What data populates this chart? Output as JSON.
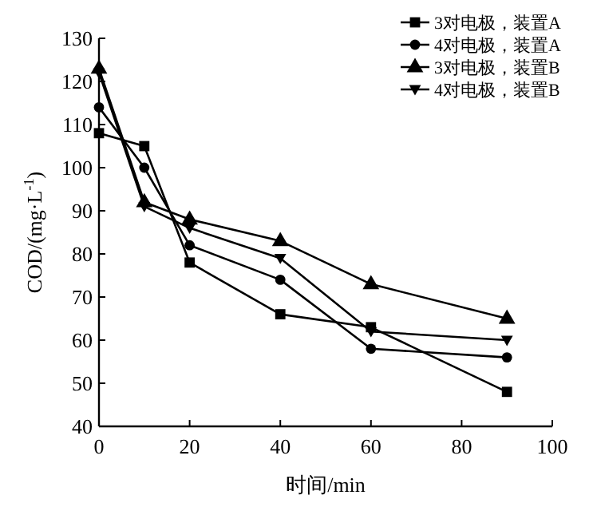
{
  "chart_data": {
    "type": "line",
    "xlabel": "时间/min",
    "ylabel": "COD/(mg·L$^{-1}$)",
    "xlim": [
      0,
      100
    ],
    "xticks": [
      0,
      20,
      40,
      60,
      80,
      100
    ],
    "ylim": [
      40,
      130
    ],
    "yticks": [
      40,
      50,
      60,
      70,
      80,
      90,
      100,
      110,
      120,
      130
    ],
    "x": [
      0,
      10,
      20,
      40,
      60,
      90
    ],
    "legend": "top right",
    "grid": false,
    "line_style": "solid",
    "series": [
      {
        "name": "3对电极，装置A",
        "color": "#000000",
        "marker": "square",
        "values": [
          108,
          105,
          78,
          66,
          63,
          48
        ]
      },
      {
        "name": "4对电极，装置A",
        "color": "#000000",
        "marker": "circle",
        "values": [
          114,
          100,
          82,
          74,
          58,
          56
        ]
      },
      {
        "name": "3对电极，装置B",
        "color": "#000000",
        "marker": "triangle",
        "values": [
          123,
          92,
          88,
          83,
          73,
          65
        ]
      },
      {
        "name": "4对电极，装置B",
        "color": "#000000",
        "marker": "triangle-down",
        "values": [
          122,
          91,
          86,
          79,
          62,
          60
        ]
      }
    ]
  }
}
